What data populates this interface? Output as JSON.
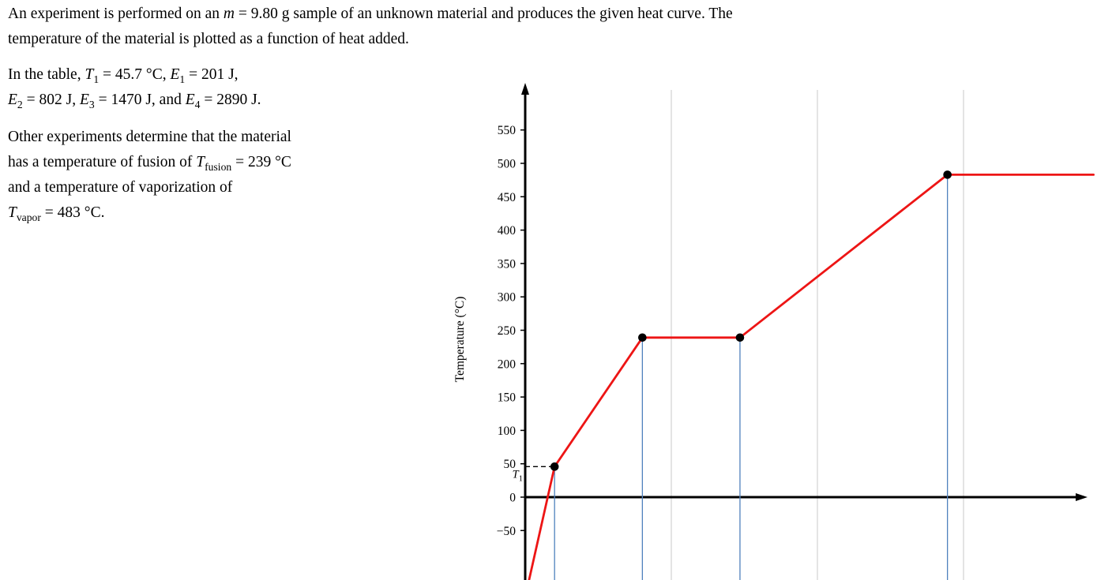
{
  "problem": {
    "p1": [
      {
        "t": "An experiment is performed on an "
      },
      {
        "t": "m",
        "it": true
      },
      {
        "t": " = 9.80 g sample of an unknown material and produces the given heat curve. The"
      },
      {
        "br": true
      },
      {
        "t": "temperature of the material is plotted as a function of heat added."
      }
    ],
    "p2": [
      {
        "t": "In the table, "
      },
      {
        "t": "T",
        "it": true
      },
      {
        "t": "1",
        "sub": true
      },
      {
        "t": " = 45.7 °C, "
      },
      {
        "t": "E",
        "it": true
      },
      {
        "t": "1",
        "sub": true
      },
      {
        "t": " = 201 J,"
      },
      {
        "br": true
      },
      {
        "t": "E",
        "it": true
      },
      {
        "t": "2",
        "sub": true
      },
      {
        "t": " = 802 J, "
      },
      {
        "t": "E",
        "it": true
      },
      {
        "t": "3",
        "sub": true
      },
      {
        "t": " = 1470 J, and "
      },
      {
        "t": "E",
        "it": true
      },
      {
        "t": "4",
        "sub": true
      },
      {
        "t": " = 2890 J."
      }
    ],
    "p3": [
      {
        "t": "Other experiments determine that the material"
      },
      {
        "br": true
      },
      {
        "t": "has a temperature of fusion of "
      },
      {
        "t": "T",
        "it": true
      },
      {
        "t": "fusion",
        "sub": true
      },
      {
        "t": " = 239 °C"
      },
      {
        "br": true
      },
      {
        "t": "and a temperature of vaporization of"
      },
      {
        "br": true
      },
      {
        "t": "T",
        "it": true
      },
      {
        "t": "vapor",
        "sub": true
      },
      {
        "t": " = 483 °C."
      }
    ]
  },
  "chart_data": {
    "type": "line",
    "title": "",
    "xlabel": "",
    "ylabel": "Temperature (°C)",
    "ylim": [
      -135,
      590
    ],
    "xlim": [
      0,
      3950
    ],
    "yticks": [
      -50,
      0,
      50,
      100,
      150,
      200,
      250,
      300,
      350,
      400,
      450,
      500,
      550
    ],
    "x_gridlines_J": [
      1000,
      2000,
      3000
    ],
    "grid_on": true,
    "legend": "none",
    "curve_color": "#ed1515",
    "dropline_color": "#4f81bd",
    "grid_color": "#c8c8c8",
    "point_color": "#000000",
    "axis_color": "#000000",
    "series": [
      {
        "name": "heat curve",
        "points": [
          [
            15,
            -135
          ],
          [
            201,
            45.7
          ],
          [
            802,
            239
          ],
          [
            1470,
            239
          ],
          [
            2890,
            483
          ],
          [
            3890,
            483
          ]
        ]
      }
    ],
    "marked_points": [
      [
        201,
        45.7
      ],
      [
        802,
        239
      ],
      [
        1470,
        239
      ],
      [
        2890,
        483
      ]
    ],
    "t1_dashed_guide": {
      "temperature_C": 45.7,
      "from_axis_to_E_J": 201,
      "label": "T",
      "label_sub": "1"
    },
    "given_values": {
      "mass_g": 9.8,
      "T1_C": 45.7,
      "E1_J": 201,
      "E2_J": 802,
      "E3_J": 1470,
      "E4_J": 2890,
      "T_fusion_C": 239,
      "T_vapor_C": 483
    }
  }
}
